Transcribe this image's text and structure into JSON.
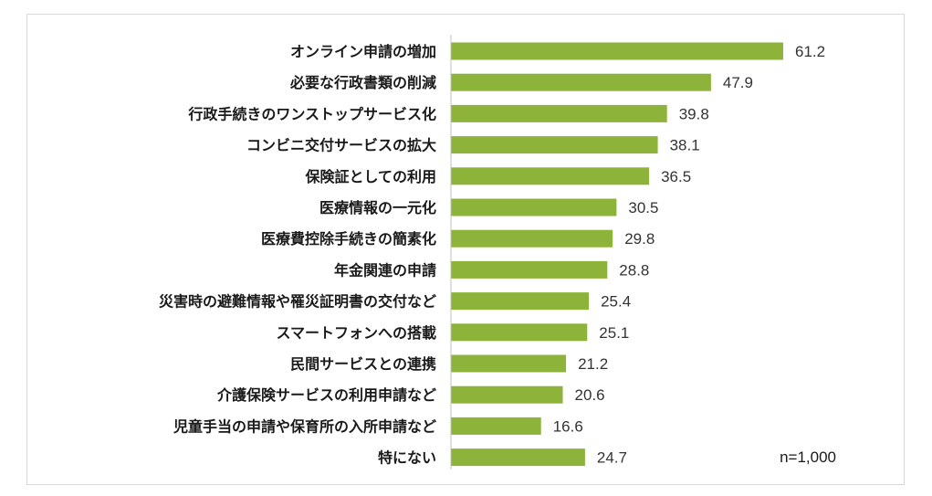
{
  "chart_data": {
    "type": "bar",
    "orientation": "horizontal",
    "categories": [
      "オンライン申請の増加",
      "必要な行政書類の削減",
      "行政手続きのワンストップサービス化",
      "コンビニ交付サービスの拡大",
      "保険証としての利用",
      "医療情報の一元化",
      "医療費控除手続きの簡素化",
      "年金関連の申請",
      "災害時の避難情報や罹災証明書の交付など",
      "スマートフォンへの搭載",
      "民間サービスとの連携",
      "介護保険サービスの利用申請など",
      "児童手当の申請や保育所の入所申請など",
      "特にない"
    ],
    "values": [
      61.2,
      47.9,
      39.8,
      38.1,
      36.5,
      30.5,
      29.8,
      28.8,
      25.4,
      25.1,
      21.2,
      20.6,
      16.6,
      24.7
    ],
    "value_labels": [
      "61.2",
      "47.9",
      "39.8",
      "38.1",
      "36.5",
      "30.5",
      "29.8",
      "28.8",
      "25.4",
      "25.1",
      "21.2",
      "20.6",
      "16.6",
      "24.7"
    ],
    "title": "",
    "xlabel": "",
    "ylabel": "",
    "xlim": [
      0,
      80
    ],
    "grid": false,
    "legend": "none",
    "bar_color": "#8db33a",
    "annotation": "n=1,000"
  }
}
